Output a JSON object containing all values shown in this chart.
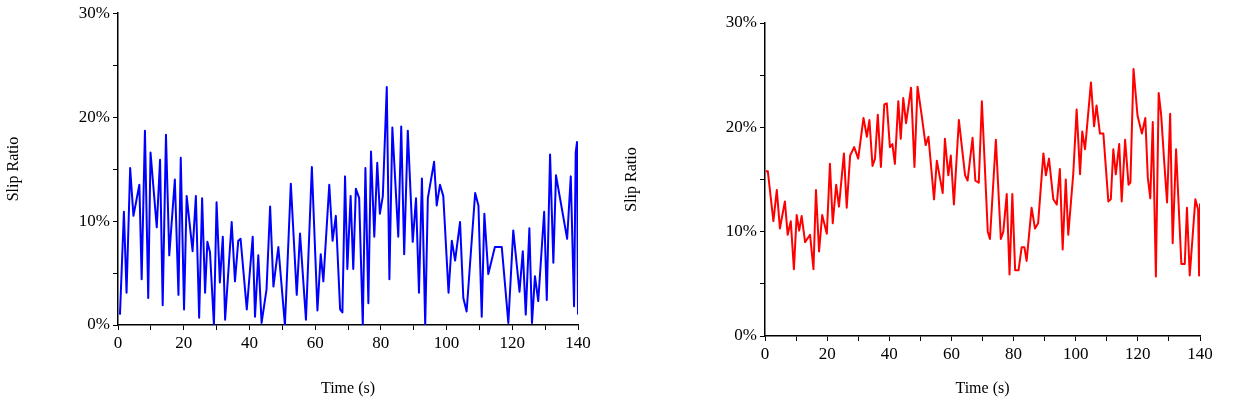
{
  "chart_data": [
    {
      "type": "line",
      "xlabel": "Time (s)",
      "ylabel": "Slip Ratio",
      "grid": false,
      "legend": false,
      "marker": "none",
      "line_style": "solid",
      "xlim": [
        0,
        140
      ],
      "xticks": [
        0,
        {
          "value": 10,
          "label": null
        },
        20,
        {
          "value": 30,
          "label": null
        },
        40,
        {
          "value": 50,
          "label": null
        },
        60,
        {
          "value": 70,
          "label": null
        },
        80,
        {
          "value": 90,
          "label": null
        },
        100,
        {
          "value": 110,
          "label": null
        },
        120,
        {
          "value": 130,
          "label": null
        },
        140
      ],
      "ylim": [
        0,
        30
      ],
      "yticks": [
        {
          "value": 0,
          "label": "0%"
        },
        {
          "value": 5,
          "label": null
        },
        {
          "value": 10,
          "label": "10%"
        },
        {
          "value": 15,
          "label": null
        },
        {
          "value": 20,
          "label": "20%"
        },
        {
          "value": 25,
          "label": null
        },
        {
          "value": 30,
          "label": "30%"
        }
      ],
      "series": [
        {
          "color": "#0000ff",
          "x": [
            0.6,
            1.8,
            2.6,
            3.7,
            4.7,
            6.5,
            7.2,
            8.2,
            9.2,
            9.9,
            11.8,
            12.8,
            13.6,
            14.6,
            15.6,
            17.3,
            18.4,
            19.1,
            20.1,
            20.9,
            22.7,
            23.7,
            24.7,
            25.6,
            26.5,
            27.2,
            28.0,
            29.2,
            30.0,
            31.0,
            31.9,
            32.6,
            34.6,
            35.6,
            36.6,
            37.3,
            39.2,
            41.0,
            41.7,
            42.7,
            43.7,
            45.2,
            46.3,
            47.3,
            48.8,
            50.8,
            52.6,
            54.4,
            55.4,
            57.2,
            59.0,
            60.7,
            61.7,
            62.5,
            64.3,
            65.3,
            66.3,
            67.6,
            68.3,
            69.1,
            69.8,
            70.8,
            71.6,
            72.4,
            73.4,
            74.5,
            75.3,
            76.2,
            77.0,
            78.0,
            78.9,
            79.7,
            80.6,
            81.8,
            82.6,
            83.5,
            85.3,
            86.2,
            87.1,
            88.2,
            89.7,
            90.7,
            91.6,
            92.5,
            93.5,
            94.3,
            96.2,
            97.0,
            98.0,
            99.0,
            100.6,
            101.6,
            102.6,
            104.1,
            105.1,
            106.1,
            108.7,
            109.7,
            110.7,
            111.5,
            112.7,
            114.7,
            116.8,
            118.8,
            120.3,
            122.2,
            123.2,
            124.1,
            125.2,
            126.0,
            126.9,
            127.9,
            129.7,
            130.5,
            131.5,
            132.5,
            133.3,
            136.7,
            137.8,
            138.8,
            139.3,
            139.7,
            140
          ],
          "values": [
            1.0,
            10.9,
            3.1,
            15.1,
            10.5,
            13.5,
            4.4,
            18.7,
            2.6,
            16.6,
            9.4,
            15.9,
            1.9,
            18.3,
            6.7,
            14.0,
            2.9,
            16.1,
            1.5,
            12.4,
            7.1,
            12.4,
            0.7,
            12.2,
            3.1,
            8.0,
            7.0,
            0,
            11.8,
            4.1,
            8.5,
            0.5,
            9.9,
            4.2,
            8.1,
            8.3,
            1.5,
            8.5,
            0.8,
            6.7,
            0.2,
            3.4,
            11.4,
            3.7,
            7.5,
            0,
            13.6,
            2.9,
            8.8,
            0.5,
            15.2,
            1.4,
            6.8,
            4.2,
            13.5,
            8.1,
            10.5,
            1.5,
            1.2,
            14.3,
            5.4,
            12.4,
            5.4,
            13.1,
            12.2,
            0,
            15.1,
            2.1,
            16.7,
            8.5,
            15.6,
            10.7,
            12.4,
            22.9,
            4.4,
            19.0,
            8.5,
            19.1,
            6.8,
            18.7,
            8.0,
            12.2,
            3.1,
            14.1,
            0,
            12.2,
            15.7,
            11.5,
            13.5,
            12.4,
            3.1,
            8.1,
            6.2,
            9.9,
            2.6,
            1.3,
            12.7,
            11.5,
            0.8,
            10.7,
            4.9,
            7.5,
            7.5,
            0.2,
            9.1,
            3.2,
            7.1,
            1.0,
            9.3,
            0.2,
            4.7,
            2.3,
            10.9,
            2.4,
            16.4,
            6.0,
            14.4,
            8.3,
            14.3,
            1.8,
            16.6,
            17.6,
            1.0
          ]
        }
      ]
    },
    {
      "type": "line",
      "xlabel": "Time (s)",
      "ylabel": "Slip Ratio",
      "grid": false,
      "legend": false,
      "marker": "none",
      "line_style": "solid",
      "xlim": [
        0,
        140
      ],
      "xticks": [
        0,
        {
          "value": 10,
          "label": null
        },
        20,
        {
          "value": 30,
          "label": null
        },
        40,
        {
          "value": 50,
          "label": null
        },
        60,
        {
          "value": 70,
          "label": null
        },
        80,
        {
          "value": 90,
          "label": null
        },
        100,
        {
          "value": 110,
          "label": null
        },
        120,
        {
          "value": 130,
          "label": null
        },
        140
      ],
      "ylim": [
        0,
        30
      ],
      "yticks": [
        {
          "value": 0,
          "label": "0%"
        },
        {
          "value": 5,
          "label": null
        },
        {
          "value": 10,
          "label": "10%"
        },
        {
          "value": 15,
          "label": null
        },
        {
          "value": 20,
          "label": "20%"
        },
        {
          "value": 25,
          "label": null
        },
        {
          "value": 30,
          "label": "30%"
        }
      ],
      "series": [
        {
          "color": "#ff0000",
          "x": [
            0.2,
            0.9,
            2.7,
            3.8,
            4.8,
            6.4,
            7.3,
            8.3,
            9.3,
            10.2,
            11.0,
            11.8,
            12.9,
            14.5,
            15.6,
            16.4,
            17.4,
            18.4,
            19.9,
            20.9,
            21.8,
            22.9,
            23.8,
            25.4,
            26.3,
            27.4,
            28.7,
            30.0,
            31.7,
            32.8,
            33.6,
            34.6,
            35.4,
            36.3,
            37.3,
            38.4,
            39.2,
            40.2,
            41.0,
            41.8,
            42.9,
            43.7,
            44.5,
            45.4,
            47.0,
            48.1,
            49.1,
            50.4,
            51.7,
            52.6,
            54.4,
            55.3,
            57.2,
            57.9,
            59.0,
            59.8,
            60.8,
            62.4,
            64.4,
            65.2,
            66.8,
            67.7,
            68.8,
            69.8,
            71.7,
            72.4,
            74.3,
            75.9,
            76.7,
            77.8,
            78.7,
            79.6,
            80.5,
            81.6,
            82.6,
            83.5,
            84.2,
            85.8,
            86.9,
            87.9,
            89.6,
            90.4,
            91.4,
            92.8,
            93.9,
            94.9,
            95.8,
            96.8,
            97.6,
            99.2,
            100.3,
            101.4,
            102.1,
            103.0,
            104.9,
            105.9,
            106.7,
            107.8,
            108.9,
            110.5,
            111.3,
            112.1,
            112.9,
            114.0,
            114.8,
            115.9,
            117.0,
            117.6,
            118.6,
            119.9,
            121.3,
            122.4,
            123.2,
            124.0,
            124.8,
            125.8,
            126.7,
            127.5,
            128.6,
            129.4,
            130.4,
            131.2,
            132.3,
            134.0,
            135.1,
            135.8,
            136.7,
            138.5,
            139.4,
            139.7,
            140
          ],
          "values": [
            15.8,
            15.8,
            11.0,
            14.0,
            10.3,
            12.9,
            9.7,
            11.0,
            6.4,
            11.6,
            10.1,
            11.5,
            9.0,
            9.7,
            6.4,
            14.0,
            8.1,
            11.6,
            9.8,
            16.5,
            10.8,
            14.5,
            12.4,
            17.5,
            12.3,
            17.3,
            18.1,
            17.0,
            20.9,
            19.1,
            20.7,
            16.3,
            17.0,
            21.2,
            16.2,
            22.2,
            22.3,
            18.1,
            18.4,
            16.5,
            22.5,
            18.9,
            22.8,
            20.4,
            23.8,
            16.2,
            23.9,
            21.2,
            18.3,
            19.1,
            13.1,
            16.8,
            13.7,
            18.9,
            15.4,
            17.3,
            12.6,
            20.7,
            15.4,
            14.9,
            19.0,
            14.9,
            14.7,
            22.5,
            10.0,
            9.3,
            18.8,
            9.3,
            10.0,
            13.6,
            5.9,
            13.6,
            6.3,
            6.3,
            8.5,
            8.5,
            7.2,
            12.3,
            10.3,
            10.8,
            17.5,
            15.4,
            17.0,
            13.1,
            12.6,
            16.0,
            8.3,
            15.0,
            9.7,
            15.5,
            21.7,
            15.5,
            19.6,
            17.9,
            24.3,
            20.1,
            22.1,
            19.4,
            19.4,
            12.9,
            13.1,
            17.9,
            15.5,
            18.4,
            12.9,
            18.8,
            14.5,
            14.7,
            25.6,
            21.1,
            19.4,
            20.9,
            15.2,
            13.2,
            20.5,
            5.7,
            23.3,
            21.2,
            16.2,
            12.8,
            21.3,
            8.9,
            17.9,
            6.9,
            6.9,
            12.3,
            5.8,
            13.1,
            12.1,
            5.8,
            12.7
          ]
        }
      ]
    }
  ]
}
